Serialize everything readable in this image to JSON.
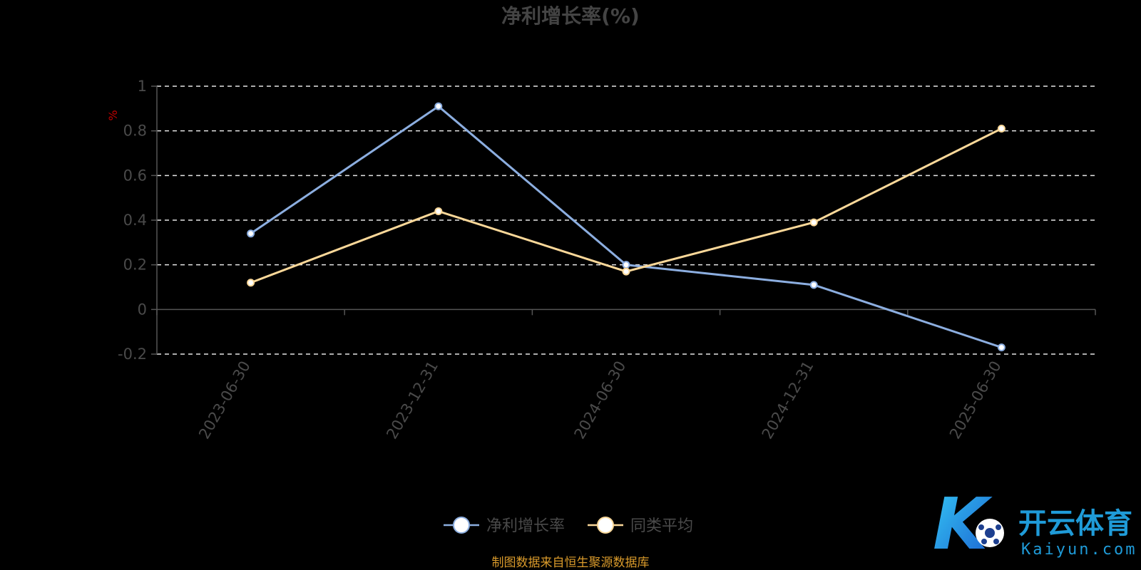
{
  "chart_data": {
    "type": "line",
    "title": "净利增长率(%)",
    "ylabel": "%",
    "categories": [
      "2023-06-30",
      "2023-12-31",
      "2024-06-30",
      "2024-12-31",
      "2025-06-30"
    ],
    "ylim": [
      -0.2,
      1
    ],
    "yticks": [
      1,
      0.8,
      0.6,
      0.4,
      0.2,
      0,
      -0.2
    ],
    "grid": true,
    "legend_position": "bottom",
    "series": [
      {
        "name": "净利增长率",
        "color": "#8caee0",
        "values": [
          0.34,
          0.91,
          0.2,
          0.11,
          -0.17
        ]
      },
      {
        "name": "同类平均",
        "color": "#fbd899",
        "values": [
          0.12,
          0.44,
          0.17,
          0.39,
          0.81
        ]
      }
    ]
  },
  "source_text": "制图数据来自恒生聚源数据库",
  "logo": {
    "glyph": "K",
    "name_cn": "开云体育",
    "name_en": "Kaiyun.com"
  }
}
